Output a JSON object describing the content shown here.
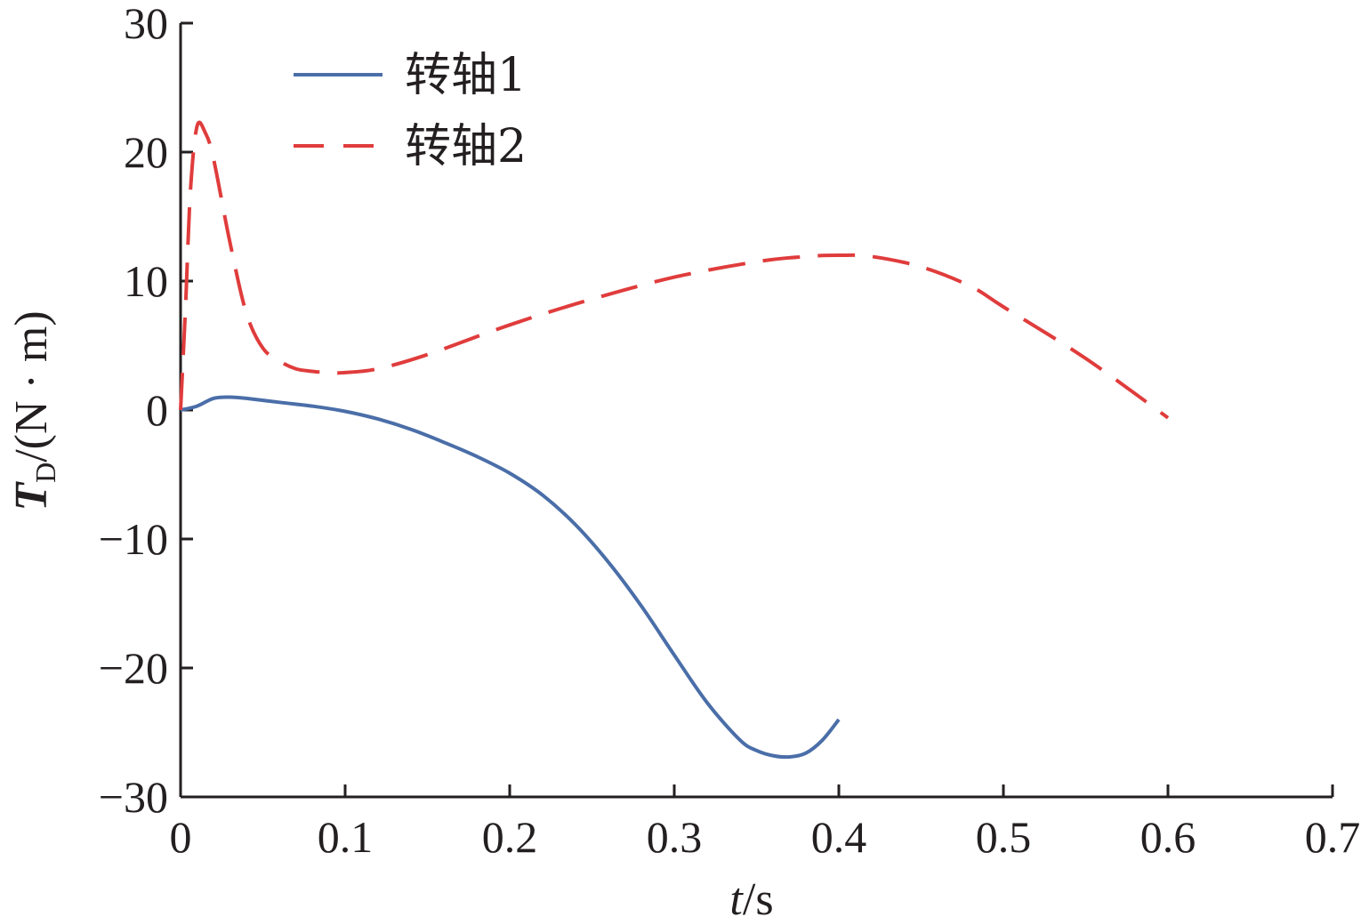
{
  "chart_data": {
    "type": "line",
    "title": "",
    "xlabel": {
      "italic": "t",
      "rest": "/s"
    },
    "ylabel": {
      "italic": "T",
      "sub": "D",
      "rest": "/(N · m)"
    },
    "xlim": [
      0,
      0.7
    ],
    "ylim": [
      -30,
      30
    ],
    "xticks": [
      0,
      0.1,
      0.2,
      0.3,
      0.4,
      0.5,
      0.6,
      0.7
    ],
    "xtick_labels": [
      "0",
      "0.1",
      "0.2",
      "0.3",
      "0.4",
      "0.5",
      "0.6",
      "0.7"
    ],
    "yticks": [
      -30,
      -20,
      -10,
      0,
      10,
      20,
      30
    ],
    "ytick_labels": [
      "−30",
      "−20",
      "−10",
      "0",
      "10",
      "20",
      "30"
    ],
    "grid": false,
    "legend_position": "top-left",
    "series": [
      {
        "name": "转轴1",
        "color": "#4a6ea8",
        "dash": "solid",
        "x": [
          0,
          0.01,
          0.02,
          0.03,
          0.04,
          0.06,
          0.08,
          0.1,
          0.12,
          0.14,
          0.16,
          0.18,
          0.2,
          0.22,
          0.24,
          0.26,
          0.28,
          0.3,
          0.32,
          0.34,
          0.35,
          0.36,
          0.37,
          0.38,
          0.39,
          0.4
        ],
        "y": [
          0,
          0.3,
          0.9,
          1.0,
          0.9,
          0.6,
          0.3,
          -0.1,
          -0.7,
          -1.5,
          -2.5,
          -3.6,
          -4.9,
          -6.6,
          -8.9,
          -11.8,
          -15.2,
          -19.0,
          -22.7,
          -25.6,
          -26.4,
          -26.8,
          -26.9,
          -26.6,
          -25.6,
          -24.0
        ]
      },
      {
        "name": "转轴2",
        "color": "#e03c3c",
        "dash": "dashed",
        "x": [
          0,
          0.003,
          0.006,
          0.01,
          0.015,
          0.02,
          0.03,
          0.04,
          0.05,
          0.06,
          0.07,
          0.08,
          0.09,
          0.1,
          0.12,
          0.15,
          0.2,
          0.25,
          0.3,
          0.35,
          0.38,
          0.4,
          0.42,
          0.45,
          0.48,
          0.5,
          0.55,
          0.6
        ],
        "y": [
          0,
          8,
          17,
          22,
          21.5,
          19.5,
          13,
          7.5,
          4.8,
          3.8,
          3.2,
          3.0,
          2.9,
          2.9,
          3.2,
          4.3,
          6.6,
          8.6,
          10.3,
          11.5,
          11.9,
          12.0,
          11.9,
          11.1,
          9.6,
          8.0,
          4.0,
          -0.6
        ]
      }
    ]
  }
}
